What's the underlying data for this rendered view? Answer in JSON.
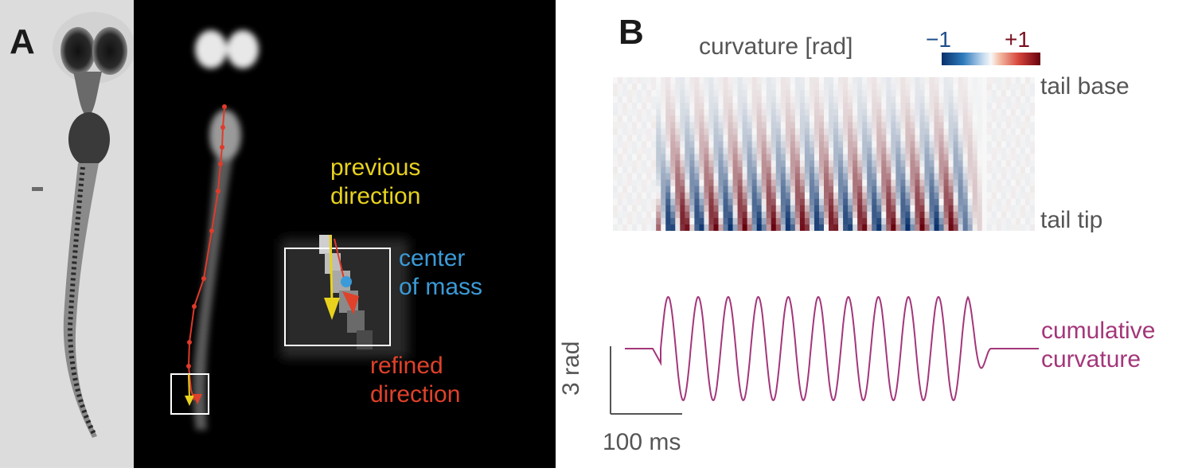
{
  "panel_a": {
    "letter": "A",
    "previous_direction": [
      "previous",
      "direction"
    ],
    "center_of_mass": [
      "center",
      "of mass"
    ],
    "refined_direction": [
      "refined",
      "direction"
    ],
    "colors": {
      "previous": "#e8d21e",
      "center": "#3b9bd8",
      "refined": "#e0412a",
      "tail_line": "#e03a2a"
    }
  },
  "panel_b": {
    "letter": "B",
    "colorbar_title": "curvature [rad]",
    "colorbar_min": "−1",
    "colorbar_max": "+1",
    "tail_base": "tail base",
    "tail_tip": "tail tip",
    "cumulative": [
      "cumulative",
      "curvature"
    ],
    "scale_y": "3 rad",
    "scale_x": "100 ms",
    "colors": {
      "neg": "#08306b",
      "pos": "#67000d",
      "trace": "#a3367a"
    },
    "oscillation_cycles": 11
  }
}
